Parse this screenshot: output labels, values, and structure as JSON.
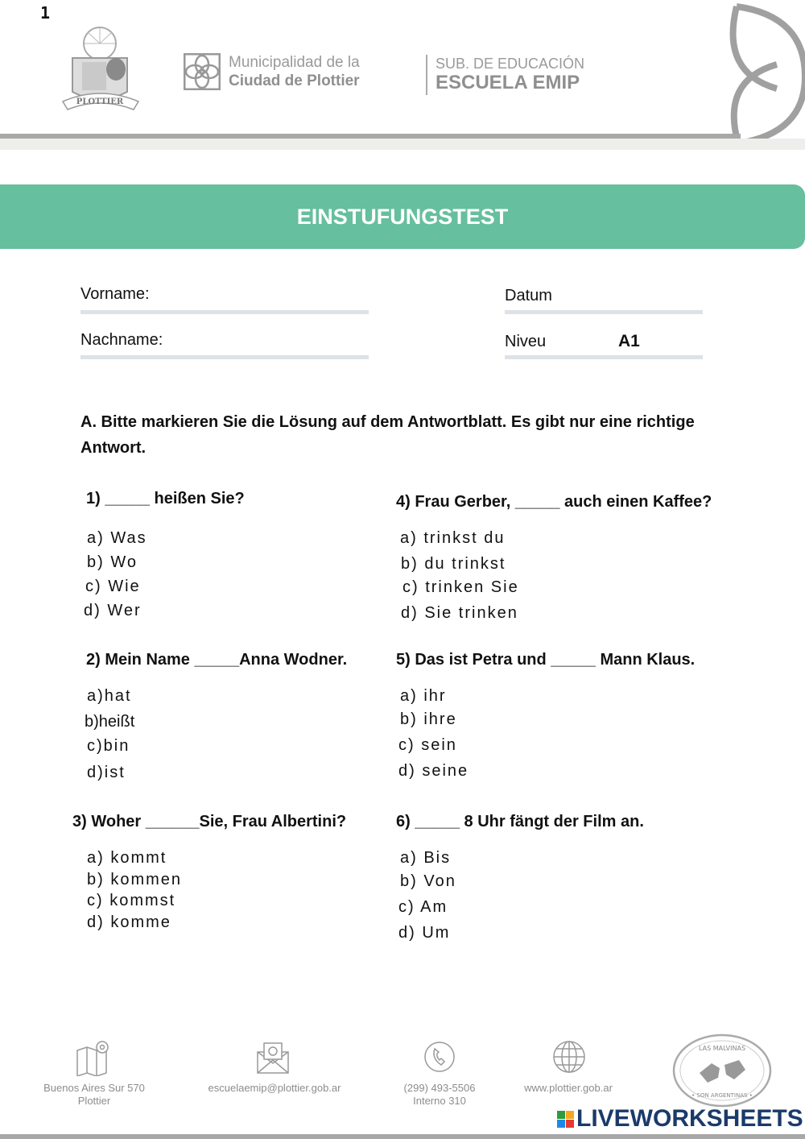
{
  "page_number": "1",
  "header": {
    "muni_line1": "Municipalidad de la",
    "muni_line2": "Ciudad de Plottier",
    "sub_line1": "SUB. DE EDUCACIÓN",
    "sub_line2": "ESCUELA EMIP",
    "crest_text": "PLOTTIER"
  },
  "title": "EINSTUFUNGSTEST",
  "form": {
    "vorname_label": "Vorname:",
    "nachname_label": "Nachname:",
    "datum_label": "Datum",
    "niveu_label": "Niveu",
    "niveu_value": "A1"
  },
  "instruction": "A. Bitte markieren Sie die Lösung auf dem Antwortblatt. Es gibt nur eine richtige Antwort.",
  "questions": [
    {
      "title": "1) _____ heißen Sie?",
      "options": [
        "a) Was",
        "b) Wo",
        "c) Wie",
        "d) Wer"
      ]
    },
    {
      "title": "2) Mein Name _____Anna Wodner.",
      "options": [
        "a)hat",
        "b)heißt",
        "c)bin",
        "d)ist"
      ]
    },
    {
      "title": "3) Woher ______Sie, Frau Albertini?",
      "options": [
        "a) kommt",
        "b) kommen",
        "c) kommst",
        "d) komme"
      ]
    },
    {
      "title": "4) Frau Gerber, _____ auch einen Kaffee?",
      "options": [
        "a) trinkst du",
        "b) du trinkst",
        "c) trinken Sie",
        "d) Sie trinken"
      ]
    },
    {
      "title": "5) Das ist Petra und _____ Mann Klaus.",
      "options": [
        "a) ihr",
        "b) ihre",
        "c) sein",
        "d) seine"
      ]
    },
    {
      "title": "6) _____ 8 Uhr fängt der Film an.",
      "options": [
        "a) Bis",
        "b) Von",
        "c) Am",
        "d) Um"
      ]
    }
  ],
  "footer": {
    "address_line1": "Buenos Aires Sur 570",
    "address_line2": "Plottier",
    "email": "escuelaemip@plottier.gob.ar",
    "phone_line1": "(299) 493-5506",
    "phone_line2": "Interno 310",
    "website": "www.plottier.gob.ar",
    "stamp_top": "LAS MALVINAS",
    "stamp_bottom": "SON ARGENTINAS",
    "watermark": "LIVEWORKSHEETS"
  },
  "colors": {
    "banner": "#66bf9e",
    "gray": "#a8a8a8"
  }
}
